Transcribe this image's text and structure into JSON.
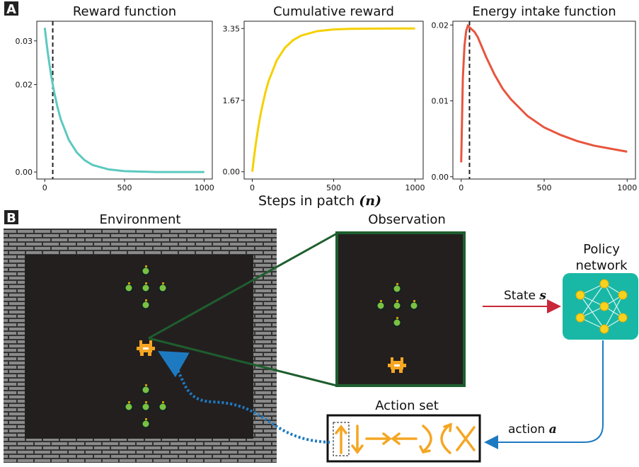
{
  "panel_labels": [
    "A",
    "B"
  ],
  "chart_data": [
    {
      "type": "line",
      "title": "Reward function",
      "color": "#5cc9c0",
      "x": [
        0,
        10,
        20,
        30,
        40,
        50,
        60,
        80,
        100,
        150,
        200,
        250,
        300,
        400,
        500,
        600,
        700,
        800,
        900,
        1000
      ],
      "values": [
        0.033,
        0.0299,
        0.027,
        0.0245,
        0.0221,
        0.02,
        0.0181,
        0.0148,
        0.0121,
        0.0074,
        0.0045,
        0.0027,
        0.0016,
        0.0006,
        0.0002,
        0.0001,
        0,
        0,
        0,
        0
      ],
      "xlim": [
        -50,
        1050
      ],
      "ylim": [
        -0.0016,
        0.0345
      ],
      "xticks": [
        0,
        500,
        1000
      ],
      "yticks": [
        {
          "value": 0,
          "label": "0.00"
        },
        0.02,
        0.03
      ],
      "vline": 50
    },
    {
      "type": "line",
      "title": "Cumulative reward",
      "color": "#f5d000",
      "x": [
        0,
        10,
        20,
        30,
        40,
        50,
        60,
        80,
        100,
        150,
        200,
        250,
        300,
        400,
        500,
        600,
        700,
        800,
        900,
        1000
      ],
      "values": [
        0,
        0.319,
        0.607,
        0.868,
        1.104,
        1.318,
        1.511,
        1.845,
        2.118,
        2.603,
        2.897,
        3.075,
        3.183,
        3.289,
        3.327,
        3.342,
        3.347,
        3.349,
        3.35,
        3.35
      ],
      "xlim": [
        -50,
        1050
      ],
      "ylim": [
        -0.17,
        3.52
      ],
      "xticks": [
        0,
        500,
        1000
      ],
      "yticks": [
        {
          "value": 0,
          "label": "0.00"
        },
        1.67,
        3.35
      ]
    },
    {
      "type": "line",
      "title": "Energy intake function",
      "color": "#e8553e",
      "x": [
        0,
        10,
        20,
        30,
        40,
        50,
        60,
        80,
        100,
        150,
        200,
        250,
        300,
        400,
        500,
        600,
        700,
        800,
        900,
        1000
      ],
      "values": [
        0.0019,
        0.013,
        0.0173,
        0.0192,
        0.0199,
        0.0197,
        0.0195,
        0.0191,
        0.0184,
        0.0158,
        0.0135,
        0.0116,
        0.0102,
        0.008,
        0.0065,
        0.0055,
        0.0047,
        0.0041,
        0.0037,
        0.0033
      ],
      "xlim": [
        -50,
        1050
      ],
      "ylim": [
        -0.0003,
        0.0205
      ],
      "xticks": [
        0,
        500,
        1000
      ],
      "yticks": [
        {
          "value": 0,
          "label": "0.00"
        },
        0.01,
        0.02
      ],
      "vline": 50
    }
  ],
  "xlabel": "Steps in patch",
  "xlabel_var": "(n)",
  "diagram": {
    "environment": "Environment",
    "observation": "Observation",
    "policy": [
      "Policy",
      "network"
    ],
    "state": "State",
    "state_var": "s",
    "action": "action",
    "action_var": "a",
    "action_set": "Action set"
  }
}
